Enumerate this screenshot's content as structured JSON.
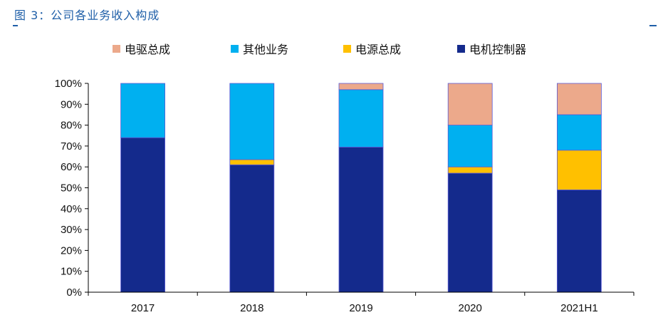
{
  "figure": {
    "title": "图 3：公司各业务收入构成"
  },
  "chart_data": {
    "type": "bar",
    "stacked": true,
    "categories": [
      "2017",
      "2018",
      "2019",
      "2020",
      "2021H1"
    ],
    "series": [
      {
        "name": "电机控制器",
        "color": "#142a8c",
        "values": [
          74,
          61,
          69.5,
          57,
          49
        ]
      },
      {
        "name": "电源总成",
        "color": "#ffc000",
        "values": [
          0,
          2.5,
          0,
          3,
          19
        ]
      },
      {
        "name": "其他业务",
        "color": "#00b0f0",
        "values": [
          26,
          36.5,
          27.5,
          20,
          17
        ]
      },
      {
        "name": "电驱总成",
        "color": "#eca98b",
        "values": [
          0,
          0,
          3,
          20,
          15
        ]
      }
    ],
    "legend_order": [
      "电驱总成",
      "其他业务",
      "电源总成",
      "电机控制器"
    ],
    "y_ticks": [
      "0%",
      "10%",
      "20%",
      "30%",
      "40%",
      "50%",
      "60%",
      "70%",
      "80%",
      "90%",
      "100%"
    ],
    "ylim": [
      0,
      100
    ],
    "legend_position": "top",
    "grid": false
  }
}
